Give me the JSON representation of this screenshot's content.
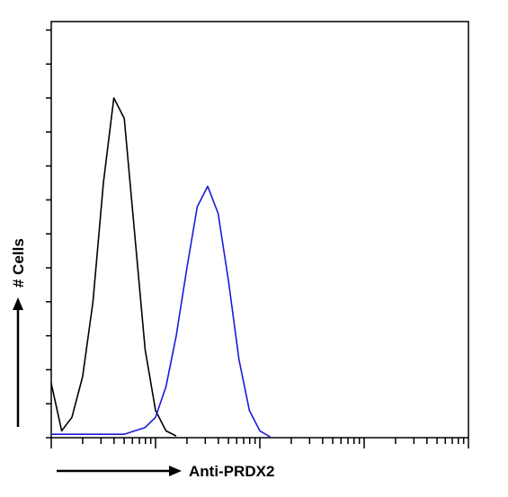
{
  "chart_data": {
    "type": "line",
    "xlabel": "Anti-PRDX2",
    "ylabel": "# Cells",
    "x": [
      1,
      1.26,
      1.58,
      2,
      2.51,
      3.16,
      3.98,
      5.01,
      6.31,
      7.94,
      10,
      12.6,
      15.8,
      20,
      25.1,
      31.6,
      39.8,
      50.1,
      63.1,
      79.4,
      100,
      126,
      158
    ],
    "series": [
      {
        "color": "#000000",
        "values": [
          1.6,
          0.2,
          0.6,
          1.8,
          4.0,
          7.5,
          10.0,
          9.4,
          6.0,
          2.6,
          0.8,
          0.2,
          0.05,
          null,
          null,
          null,
          null,
          null,
          null,
          null,
          null,
          null,
          null
        ]
      },
      {
        "color": "#1a1adc",
        "values": [
          0.1,
          0.1,
          0.1,
          0.1,
          0.1,
          0.1,
          0.1,
          0.1,
          0.2,
          0.3,
          0.6,
          1.5,
          3.0,
          5.0,
          6.8,
          7.4,
          6.6,
          4.6,
          2.3,
          0.8,
          0.2,
          0.02,
          null
        ]
      }
    ],
    "xscale": "log",
    "xlim": [
      1,
      10000
    ],
    "xticks": [
      1,
      2,
      3,
      4,
      5,
      6,
      7,
      8,
      9,
      10,
      20,
      30,
      40,
      50,
      60,
      70,
      80,
      90,
      100,
      200,
      300,
      400,
      500,
      600,
      700,
      800,
      900,
      1000,
      2000,
      3000,
      4000,
      5000,
      6000,
      7000,
      8000,
      9000,
      10000
    ],
    "ylim": [
      0,
      12.25
    ],
    "yticks": [
      0,
      1,
      2,
      3,
      4,
      5,
      6,
      7,
      8,
      9,
      10,
      11,
      12
    ]
  }
}
